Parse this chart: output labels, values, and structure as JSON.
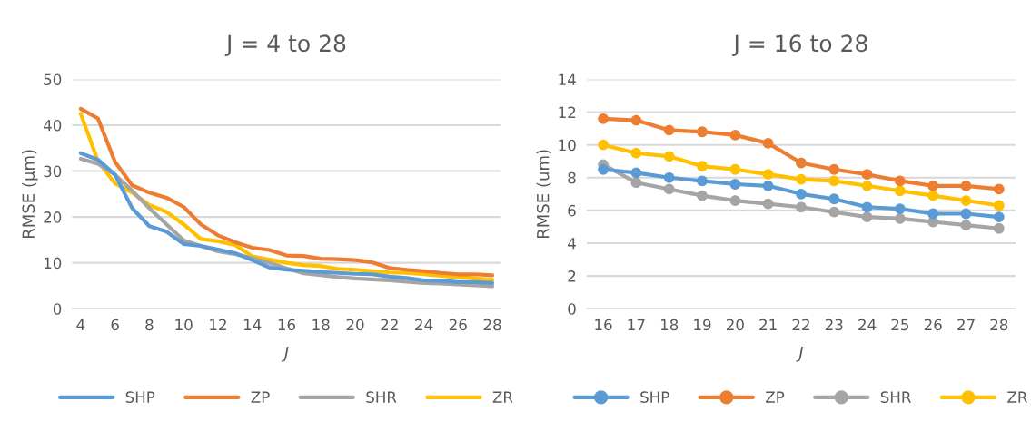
{
  "chart_data": [
    {
      "type": "line",
      "title": "J = 4 to 28",
      "xlabel": "J",
      "ylabel": "RMSE (µm)",
      "x": [
        4,
        5,
        6,
        7,
        8,
        9,
        10,
        11,
        12,
        13,
        14,
        15,
        16,
        17,
        18,
        19,
        20,
        21,
        22,
        23,
        24,
        25,
        26,
        27,
        28
      ],
      "xlim": [
        3.5,
        28.5
      ],
      "xticks": [
        4,
        6,
        8,
        10,
        12,
        14,
        16,
        18,
        20,
        22,
        24,
        26,
        28
      ],
      "ylim": [
        0,
        50
      ],
      "yticks": [
        0,
        10,
        20,
        30,
        40,
        50
      ],
      "grid": "y",
      "legend": "bottom",
      "marker": "none",
      "line_style": "solid",
      "series": [
        {
          "name": "SHP",
          "color": "#5b9bd5",
          "values": [
            33.9,
            32.5,
            29.2,
            21.9,
            18,
            16.8,
            14.1,
            13.7,
            12.9,
            12.1,
            10.6,
            9.0,
            8.5,
            8.3,
            8.0,
            7.8,
            7.6,
            7.5,
            7.0,
            6.7,
            6.2,
            6.1,
            5.8,
            5.8,
            5.6
          ]
        },
        {
          "name": "ZP",
          "color": "#ed7d31",
          "values": [
            43.6,
            41.5,
            32,
            26.9,
            25.3,
            24.2,
            22.2,
            18.4,
            16,
            14.5,
            13.3,
            12.8,
            11.6,
            11.5,
            10.9,
            10.8,
            10.6,
            10.1,
            8.9,
            8.5,
            8.2,
            7.8,
            7.5,
            7.5,
            7.3
          ]
        },
        {
          "name": "SHR",
          "color": "#a5a5a5",
          "values": [
            32.7,
            31.6,
            29.2,
            25.7,
            21.9,
            18.4,
            14.9,
            13.7,
            12.5,
            11.9,
            11.0,
            10.0,
            8.8,
            7.7,
            7.3,
            6.9,
            6.6,
            6.4,
            6.2,
            5.9,
            5.6,
            5.5,
            5.3,
            5.1,
            4.9
          ]
        },
        {
          "name": "ZR",
          "color": "#ffc000",
          "values": [
            42.5,
            32.2,
            27.3,
            25.3,
            22.6,
            21.1,
            18.4,
            15.2,
            14.7,
            13.9,
            11.4,
            10.7,
            10.0,
            9.5,
            9.3,
            8.7,
            8.5,
            8.2,
            7.9,
            7.8,
            7.5,
            7.2,
            6.9,
            6.6,
            6.3
          ]
        }
      ]
    },
    {
      "type": "line",
      "title": "J = 16 to 28",
      "xlabel": "J",
      "ylabel": "RMSE (um)",
      "categories": [
        "16",
        "17",
        "18",
        "19",
        "20",
        "21",
        "22",
        "23",
        "24",
        "25",
        "26",
        "27",
        "28"
      ],
      "ylim": [
        0,
        14
      ],
      "yticks": [
        0,
        2,
        4,
        6,
        8,
        10,
        12,
        14
      ],
      "grid": "y",
      "legend": "bottom",
      "marker": "circle",
      "line_style": "solid",
      "series": [
        {
          "name": "SHP",
          "color": "#5b9bd5",
          "values": [
            8.5,
            8.3,
            8.0,
            7.8,
            7.6,
            7.5,
            7.0,
            6.7,
            6.2,
            6.1,
            5.8,
            5.8,
            5.6
          ]
        },
        {
          "name": "ZP",
          "color": "#ed7d31",
          "values": [
            11.6,
            11.5,
            10.9,
            10.8,
            10.6,
            10.1,
            8.9,
            8.5,
            8.2,
            7.8,
            7.5,
            7.5,
            7.3
          ]
        },
        {
          "name": "SHR",
          "color": "#a5a5a5",
          "values": [
            8.8,
            7.7,
            7.3,
            6.9,
            6.6,
            6.4,
            6.2,
            5.9,
            5.6,
            5.5,
            5.3,
            5.1,
            4.9
          ]
        },
        {
          "name": "ZR",
          "color": "#ffc000",
          "values": [
            10.0,
            9.5,
            9.3,
            8.7,
            8.5,
            8.2,
            7.9,
            7.8,
            7.5,
            7.2,
            6.9,
            6.6,
            6.3
          ]
        }
      ]
    }
  ]
}
